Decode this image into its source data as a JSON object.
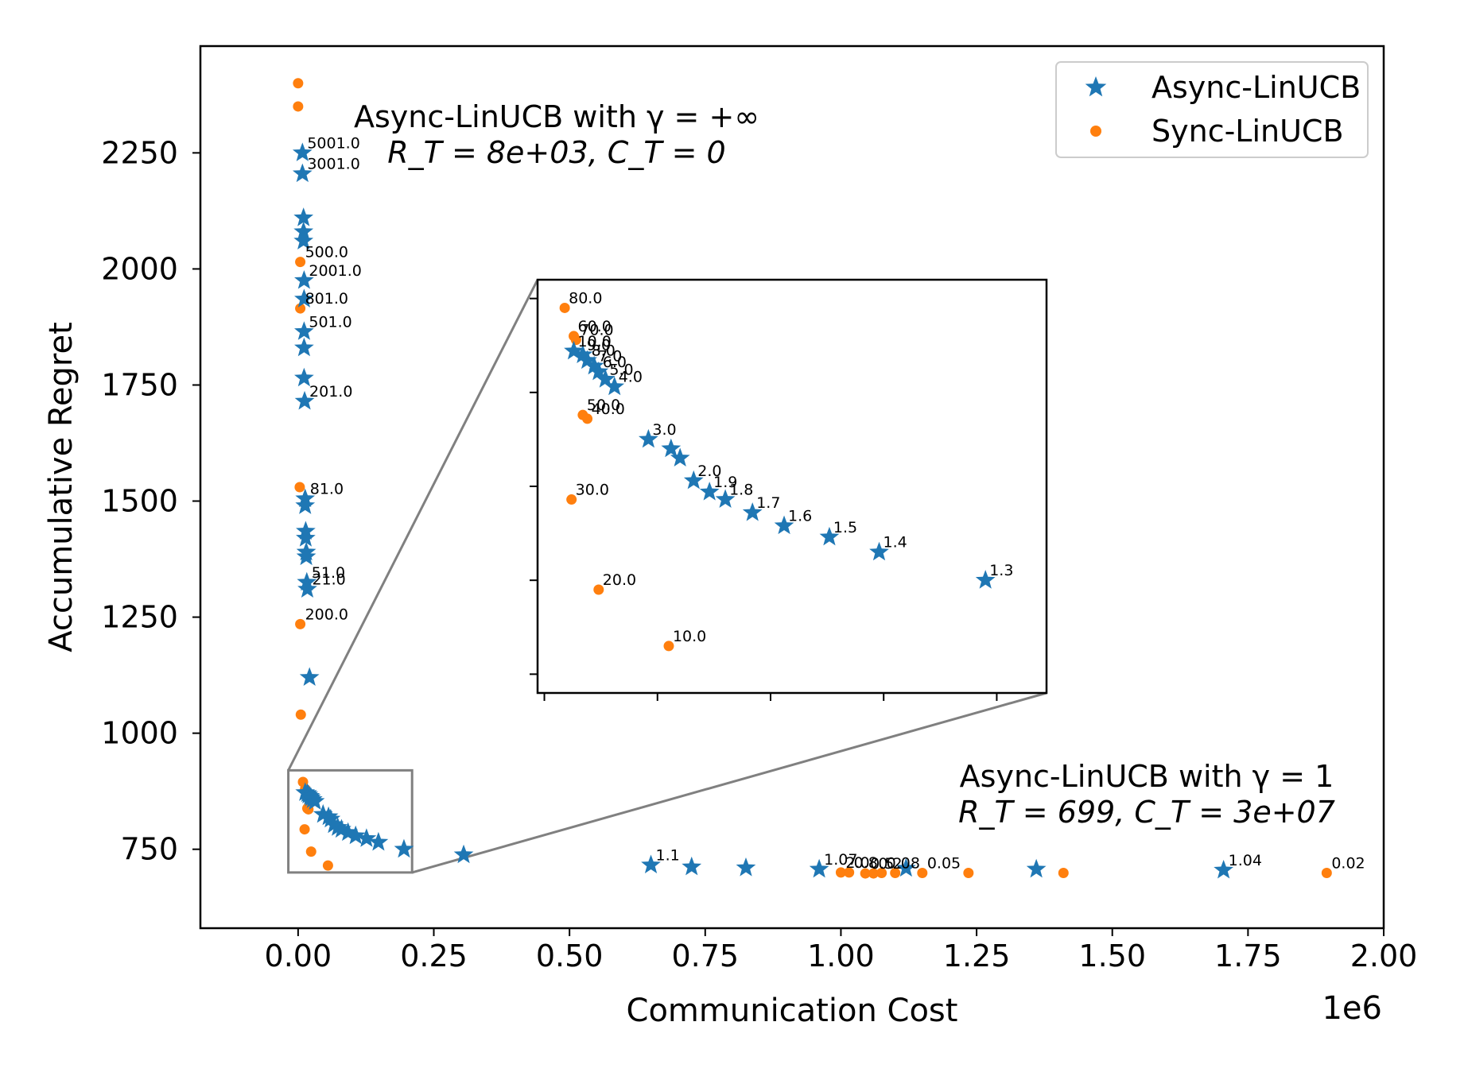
{
  "chart_data": {
    "type": "scatter",
    "xlabel": "Communication Cost",
    "ylabel": "Accumulative Regret",
    "x_scale_label": "1e6",
    "xlim": [
      -0.18,
      2.0
    ],
    "ylim": [
      580,
      2480
    ],
    "x_ticks": [
      0.0,
      0.25,
      0.5,
      0.75,
      1.0,
      1.25,
      1.5,
      1.75,
      2.0
    ],
    "x_tick_labels": [
      "0.00",
      "0.25",
      "0.50",
      "0.75",
      "1.00",
      "1.25",
      "1.50",
      "1.75",
      "2.00"
    ],
    "y_ticks": [
      750,
      1000,
      1250,
      1500,
      1750,
      2000,
      2250
    ],
    "y_tick_labels": [
      "750",
      "1000",
      "1250",
      "1500",
      "1750",
      "2000",
      "2250"
    ],
    "legend": {
      "position": "top-right",
      "entries": [
        {
          "label": "Async-LinUCB",
          "marker": "star",
          "color": "#1f77b4"
        },
        {
          "label": "Sync-LinUCB",
          "marker": "circle",
          "color": "#ff7f0e"
        }
      ]
    },
    "annotations": {
      "top": {
        "line1": "Async-LinUCB with γ = +∞",
        "line2": "R_T = 8e+03, C_T = 0"
      },
      "bottom": {
        "line1": "Async-LinUCB with γ = 1",
        "line2": "R_T = 699, C_T = 3e+07"
      }
    },
    "series": [
      {
        "name": "Async-LinUCB",
        "color": "#1f77b4",
        "points": [
          {
            "x": 0.008,
            "y": 2250,
            "label": "5001.0"
          },
          {
            "x": 0.008,
            "y": 2205,
            "label": "3001.0"
          },
          {
            "x": 0.01,
            "y": 2110
          },
          {
            "x": 0.01,
            "y": 2080
          },
          {
            "x": 0.01,
            "y": 2060
          },
          {
            "x": 0.011,
            "y": 1975,
            "label": "2001.0"
          },
          {
            "x": 0.011,
            "y": 1935
          },
          {
            "x": 0.011,
            "y": 1865,
            "label": "501.0"
          },
          {
            "x": 0.011,
            "y": 1830
          },
          {
            "x": 0.011,
            "y": 1765
          },
          {
            "x": 0.012,
            "y": 1715,
            "label": "201.0"
          },
          {
            "x": 0.013,
            "y": 1505,
            "label": "81.0"
          },
          {
            "x": 0.013,
            "y": 1490
          },
          {
            "x": 0.014,
            "y": 1435
          },
          {
            "x": 0.014,
            "y": 1420
          },
          {
            "x": 0.015,
            "y": 1390
          },
          {
            "x": 0.015,
            "y": 1380
          },
          {
            "x": 0.016,
            "y": 1325,
            "label": "51.0"
          },
          {
            "x": 0.017,
            "y": 1310,
            "label": "21.0"
          },
          {
            "x": 0.021,
            "y": 1120
          },
          {
            "x": 0.013,
            "y": 872,
            "label": "10.0"
          },
          {
            "x": 0.017,
            "y": 870,
            "label": "9.0"
          },
          {
            "x": 0.019,
            "y": 867,
            "label": "8.0"
          },
          {
            "x": 0.022,
            "y": 864,
            "label": "7.0"
          },
          {
            "x": 0.024,
            "y": 861,
            "label": "6.0"
          },
          {
            "x": 0.027,
            "y": 857,
            "label": "5.0"
          },
          {
            "x": 0.031,
            "y": 853,
            "label": "4.0"
          },
          {
            "x": 0.046,
            "y": 825,
            "label": "3.0"
          },
          {
            "x": 0.056,
            "y": 820
          },
          {
            "x": 0.06,
            "y": 815
          },
          {
            "x": 0.066,
            "y": 803,
            "label": "2.0"
          },
          {
            "x": 0.073,
            "y": 797,
            "label": "1.9"
          },
          {
            "x": 0.08,
            "y": 793,
            "label": "1.8"
          },
          {
            "x": 0.092,
            "y": 786,
            "label": "1.7"
          },
          {
            "x": 0.106,
            "y": 779,
            "label": "1.6"
          },
          {
            "x": 0.126,
            "y": 773,
            "label": "1.5"
          },
          {
            "x": 0.148,
            "y": 765,
            "label": "1.4"
          },
          {
            "x": 0.195,
            "y": 750,
            "label": "1.3"
          },
          {
            "x": 0.305,
            "y": 738
          },
          {
            "x": 0.65,
            "y": 716,
            "label": "1.1"
          },
          {
            "x": 0.725,
            "y": 712
          },
          {
            "x": 0.825,
            "y": 710
          },
          {
            "x": 0.96,
            "y": 707,
            "label": "1.07"
          },
          {
            "x": 1.12,
            "y": 709
          },
          {
            "x": 1.36,
            "y": 707
          },
          {
            "x": 1.705,
            "y": 705,
            "label": "1.04"
          }
        ]
      },
      {
        "name": "Sync-LinUCB",
        "color": "#ff7f0e",
        "points": [
          {
            "x": 0.0,
            "y": 2400
          },
          {
            "x": 0.0,
            "y": 2350
          },
          {
            "x": 0.004,
            "y": 2015,
            "label": "500.0"
          },
          {
            "x": 0.004,
            "y": 1915,
            "label": "801.0"
          },
          {
            "x": 0.003,
            "y": 1530
          },
          {
            "x": 0.004,
            "y": 1235,
            "label": "200.0"
          },
          {
            "x": 0.005,
            "y": 1040
          },
          {
            "x": 0.009,
            "y": 895,
            "label": "80.0"
          },
          {
            "x": 0.013,
            "y": 880,
            "label": "60.0"
          },
          {
            "x": 0.014,
            "y": 878,
            "label": "70.0"
          },
          {
            "x": 0.017,
            "y": 838,
            "label": "50.0"
          },
          {
            "x": 0.019,
            "y": 836,
            "label": "40.0"
          },
          {
            "x": 0.012,
            "y": 793,
            "label": "30.0"
          },
          {
            "x": 0.024,
            "y": 745,
            "label": "20.0"
          },
          {
            "x": 0.055,
            "y": 715,
            "label": "10.0"
          },
          {
            "x": 1.0,
            "y": 700,
            "label": "2.0"
          },
          {
            "x": 1.015,
            "y": 700,
            "label": "0.8"
          },
          {
            "x": 1.045,
            "y": 698,
            "label": "0.5"
          },
          {
            "x": 1.06,
            "y": 698,
            "label": "0.2"
          },
          {
            "x": 1.075,
            "y": 699,
            "label": "0.08"
          },
          {
            "x": 1.1,
            "y": 699
          },
          {
            "x": 1.15,
            "y": 699,
            "label": "0.05"
          },
          {
            "x": 1.235,
            "y": 699
          },
          {
            "x": 1.41,
            "y": 699
          },
          {
            "x": 1.895,
            "y": 699,
            "label": "0.02"
          }
        ]
      }
    ],
    "inset": {
      "xlim": [
        -0.003,
        0.222
      ],
      "ylim": [
        690,
        910
      ],
      "source_box": {
        "x0": -0.018,
        "x1": 0.21,
        "y0": 700,
        "y1": 920
      }
    }
  }
}
